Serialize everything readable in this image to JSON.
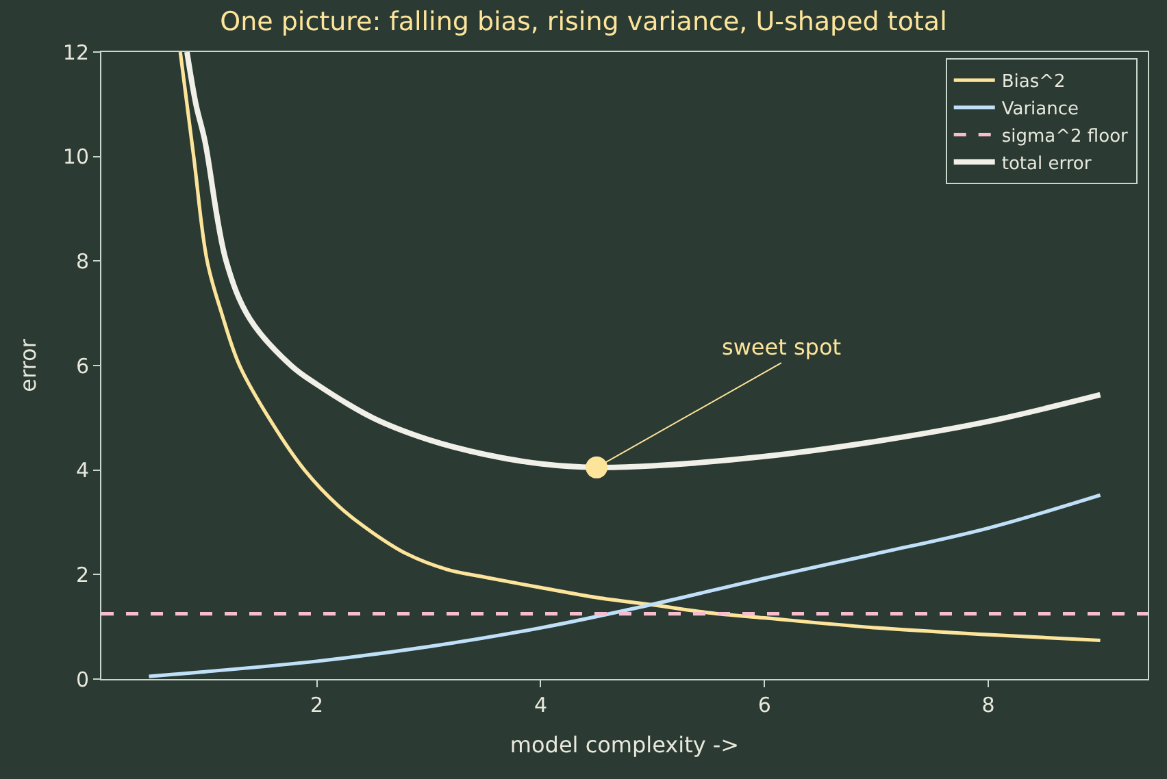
{
  "chart_data": {
    "type": "line",
    "title": "One picture: falling bias, rising variance, U-shaped total",
    "xlabel": "model complexity ->",
    "ylabel": "error",
    "series": [
      {
        "name": "Bias^2",
        "color": "#fce49a",
        "x": [
          0.78,
          0.9,
          1.02,
          1.15,
          1.31,
          1.6,
          1.89,
          2.2,
          2.5,
          2.8,
          3.16,
          3.5,
          4,
          4.5,
          5,
          5.5,
          6,
          7,
          8,
          9
        ],
        "values": [
          12,
          10,
          8,
          7,
          6,
          4.9,
          4,
          3.3,
          2.8,
          2.4,
          2.1,
          1.95,
          1.75,
          1.56,
          1.42,
          1.27,
          1.17,
          0.98,
          0.85,
          0.74
        ]
      },
      {
        "name": "Variance",
        "color": "#bfe0f8",
        "x": [
          0.5,
          1,
          2,
          3,
          4,
          5,
          6,
          7,
          8,
          9
        ],
        "values": [
          0.05,
          0.14,
          0.34,
          0.62,
          0.98,
          1.43,
          1.93,
          2.4,
          2.89,
          3.52
        ]
      },
      {
        "name": "total error",
        "color": "#f0f0e8",
        "x": [
          0.84,
          0.92,
          1,
          1.19,
          1.4,
          1.77,
          2,
          2.5,
          3,
          3.5,
          4,
          4.5,
          5,
          6,
          7,
          8,
          9
        ],
        "values": [
          12,
          11,
          10.3,
          8,
          6.9,
          6,
          5.64,
          5,
          4.58,
          4.3,
          4.12,
          4.05,
          4.08,
          4.26,
          4.55,
          4.93,
          5.44
        ]
      }
    ],
    "ref_lines": [
      {
        "axis": "y",
        "value": 1.25,
        "label": "sigma^2 floor",
        "color": "#f8bccf",
        "line_style": "dashed"
      }
    ],
    "annotations": [
      {
        "text": "sweet spot",
        "x": 4.5,
        "y": 4.05
      }
    ],
    "xlim": [
      0.075,
      9.425
    ],
    "xticks": [
      2,
      4,
      6,
      8
    ],
    "ylim": [
      0,
      12
    ],
    "yticks": [
      0,
      2,
      4,
      6,
      8,
      10,
      12
    ],
    "grid": false,
    "legend": "top right",
    "marker": "none",
    "line_style": "solid"
  }
}
